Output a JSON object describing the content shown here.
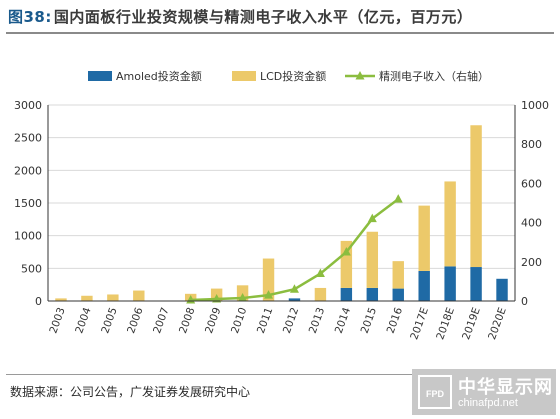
{
  "header": {
    "figure_number": "图38:",
    "title": "国内面板行业投资规模与精测电子收入水平（亿元，百万元）"
  },
  "source": "数据来源：公司公告，广发证券发展研究中心",
  "watermark": {
    "badge": "FPD",
    "name": "中华显示网",
    "url": "chinafpd.net"
  },
  "colors": {
    "amoled": "#1f6aa5",
    "lcd": "#ecc96a",
    "line": "#8bbd3f",
    "grid": "#d9d9d9",
    "axis": "#333333"
  },
  "chart_data": {
    "type": "bar",
    "stacked": true,
    "categories": [
      "2003",
      "2004",
      "2005",
      "2006",
      "2007",
      "2008",
      "2009",
      "2010",
      "2011",
      "2012",
      "2013",
      "2014",
      "2015",
      "2016",
      "2017E",
      "2018E",
      "2019E",
      "2020E"
    ],
    "series": [
      {
        "name": "Amoled投资金额",
        "type": "bar",
        "axis": "left",
        "color": "#1f6aa5",
        "values": [
          0,
          0,
          0,
          0,
          0,
          0,
          0,
          0,
          0,
          40,
          0,
          200,
          200,
          190,
          460,
          530,
          520,
          340
        ]
      },
      {
        "name": "LCD投资金额",
        "type": "bar",
        "axis": "left",
        "color": "#ecc96a",
        "values": [
          40,
          80,
          100,
          160,
          0,
          110,
          190,
          240,
          650,
          0,
          200,
          720,
          860,
          420,
          1000,
          1300,
          2170,
          0
        ]
      },
      {
        "name": "精测电子收入（右轴）",
        "type": "line",
        "axis": "right",
        "color": "#8bbd3f",
        "values": [
          null,
          null,
          null,
          null,
          null,
          5,
          10,
          15,
          30,
          60,
          140,
          250,
          420,
          520,
          null,
          null,
          null,
          null
        ]
      }
    ],
    "y_left": {
      "min": 0,
      "max": 3000,
      "ticks": [
        0,
        500,
        1000,
        1500,
        2000,
        2500,
        3000
      ]
    },
    "y_right": {
      "min": 0,
      "max": 1000,
      "ticks": [
        0,
        200,
        400,
        600,
        800,
        1000
      ]
    },
    "grid": "horizontal",
    "legend_position": "top"
  }
}
